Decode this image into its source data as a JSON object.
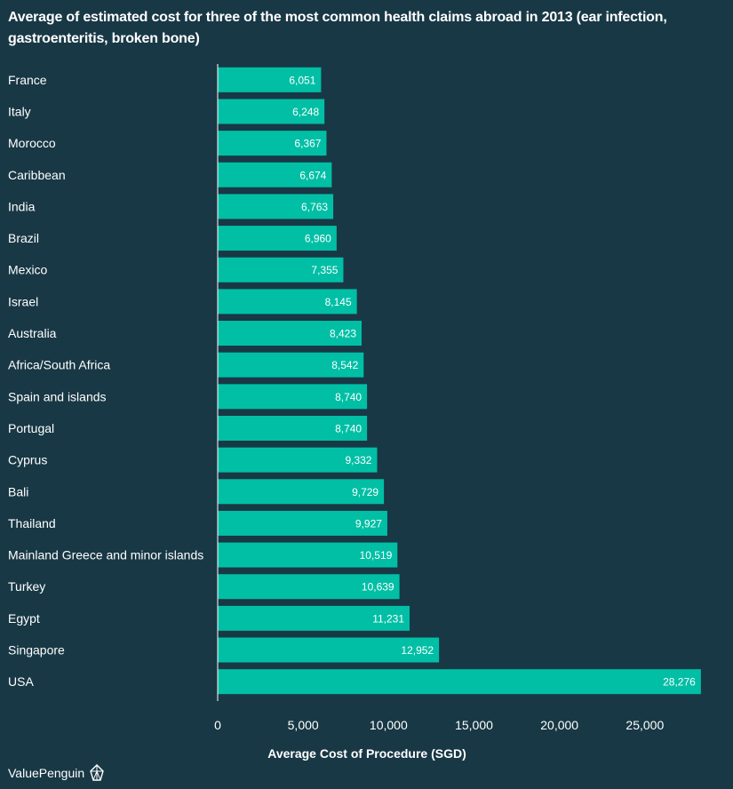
{
  "chart_data": {
    "type": "bar",
    "orientation": "horizontal",
    "title": "Average of estimated cost for three of the most common health claims abroad in 2013 (ear infection, gastroenteritis, broken bone)",
    "xlabel": "Average Cost of Procedure (SGD)",
    "ylabel": "",
    "xlim": [
      0,
      30000
    ],
    "xticks": [
      0,
      5000,
      10000,
      15000,
      20000,
      25000
    ],
    "xtick_labels": [
      "0",
      "5,000",
      "10,000",
      "15,000",
      "20,000",
      "25,000"
    ],
    "grid": false,
    "categories": [
      "France",
      "Italy",
      "Morocco",
      "Caribbean",
      "India",
      "Brazil",
      "Mexico",
      "Israel",
      "Australia",
      "Africa/South Africa",
      "Spain and islands",
      "Portugal",
      "Cyprus",
      "Bali",
      "Thailand",
      "Mainland Greece and minor islands",
      "Turkey",
      "Egypt",
      "Singapore",
      "USA"
    ],
    "values": [
      6051,
      6248,
      6367,
      6674,
      6763,
      6960,
      7355,
      8145,
      8423,
      8542,
      8740,
      8740,
      9332,
      9729,
      9927,
      10519,
      10639,
      11231,
      12952,
      28276
    ],
    "value_labels": [
      "6,051",
      "6,248",
      "6,367",
      "6,674",
      "6,763",
      "6,960",
      "7,355",
      "8,145",
      "8,423",
      "8,542",
      "8,740",
      "8,740",
      "9,332",
      "9,729",
      "9,927",
      "10,519",
      "10,639",
      "11,231",
      "12,952",
      "28,276"
    ],
    "colors": {
      "background": "#183845",
      "bar": "#00bfa5",
      "axis": "#ffffff",
      "text": "#ffffff"
    }
  },
  "brand": {
    "name": "ValuePenguin",
    "icon": "penguin-logo-icon"
  }
}
